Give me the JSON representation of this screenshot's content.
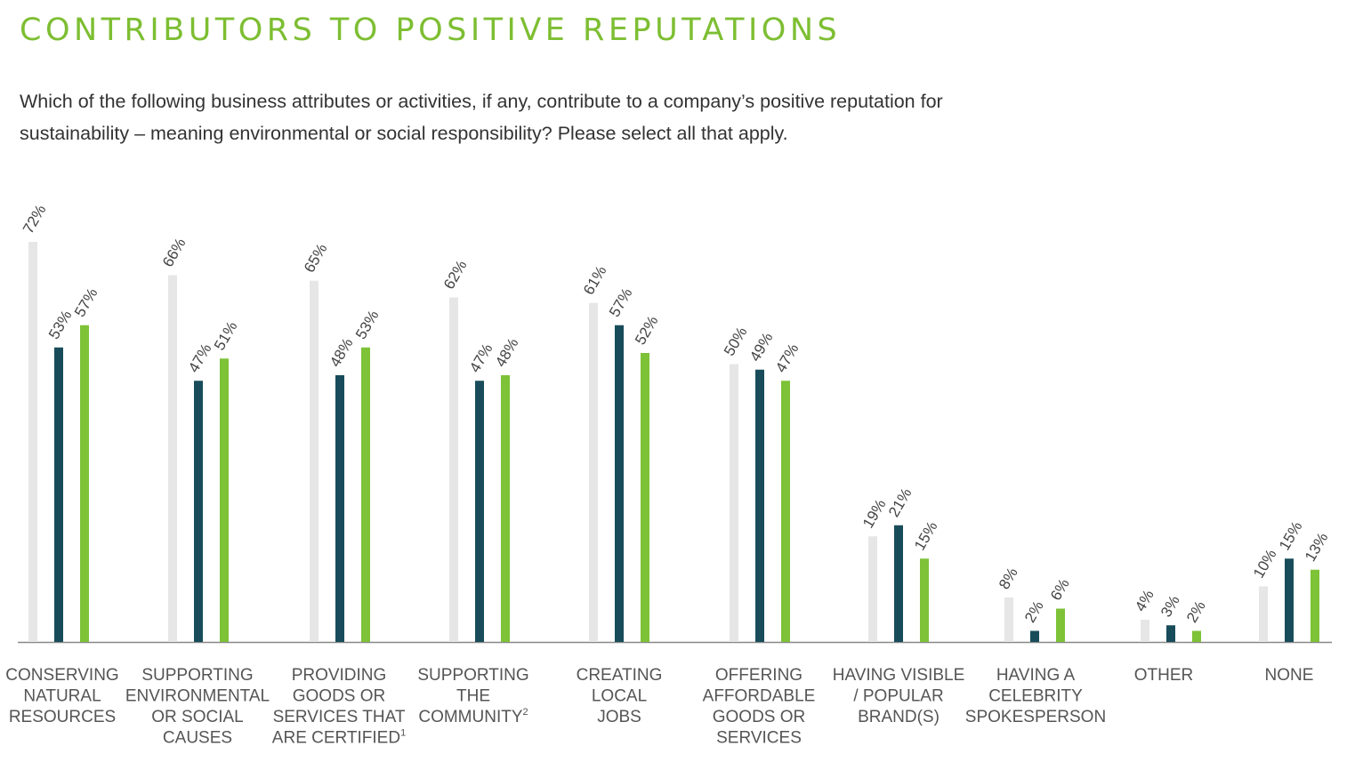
{
  "header": {
    "title": "CONTRIBUTORS TO POSITIVE REPUTATIONS",
    "question": "Which of the following business attributes or activities, if any, contribute to a company’s positive reputation for sustainability – meaning environmental or social responsibility? Please select all that apply."
  },
  "colors": {
    "series": [
      "#e6e6e6",
      "#184c5a",
      "#7dc237"
    ],
    "axis": "#888888",
    "title": "#7dbe32"
  },
  "chart_data": {
    "type": "bar",
    "title": "CONTRIBUTORS TO POSITIVE REPUTATIONS",
    "xlabel": "",
    "ylabel": "",
    "ylim": [
      0,
      75
    ],
    "grid": false,
    "legend": "none",
    "categories": [
      {
        "lines": [
          "CONSERVING",
          "NATURAL",
          "RESOURCES"
        ],
        "sup": ""
      },
      {
        "lines": [
          "SUPPORTING",
          "ENVIRONMENTAL",
          "OR SOCIAL",
          "CAUSES"
        ],
        "sup": ""
      },
      {
        "lines": [
          "PROVIDING",
          "GOODS OR",
          "SERVICES THAT",
          "ARE CERTIFIED"
        ],
        "sup": "1"
      },
      {
        "lines": [
          "SUPPORTING",
          "THE",
          "COMMUNITY"
        ],
        "sup": "2"
      },
      {
        "lines": [
          "CREATING",
          "LOCAL",
          "JOBS"
        ],
        "sup": ""
      },
      {
        "lines": [
          "OFFERING",
          "AFFORDABLE",
          "GOODS OR",
          "SERVICES"
        ],
        "sup": ""
      },
      {
        "lines": [
          "HAVING VISIBLE",
          "/ POPULAR",
          "BRAND(S)"
        ],
        "sup": ""
      },
      {
        "lines": [
          "HAVING A",
          "CELEBRITY",
          "SPOKESPERSON"
        ],
        "sup": ""
      },
      {
        "lines": [
          "OTHER"
        ],
        "sup": ""
      },
      {
        "lines": [
          "NONE"
        ],
        "sup": ""
      }
    ],
    "series": [
      {
        "values": [
          72,
          66,
          65,
          62,
          61,
          50,
          19,
          8,
          4,
          10
        ]
      },
      {
        "values": [
          53,
          47,
          48,
          47,
          57,
          49,
          21,
          2,
          3,
          15
        ]
      },
      {
        "values": [
          57,
          51,
          53,
          48,
          52,
          47,
          15,
          6,
          2,
          13
        ]
      }
    ],
    "value_suffix": "%"
  }
}
